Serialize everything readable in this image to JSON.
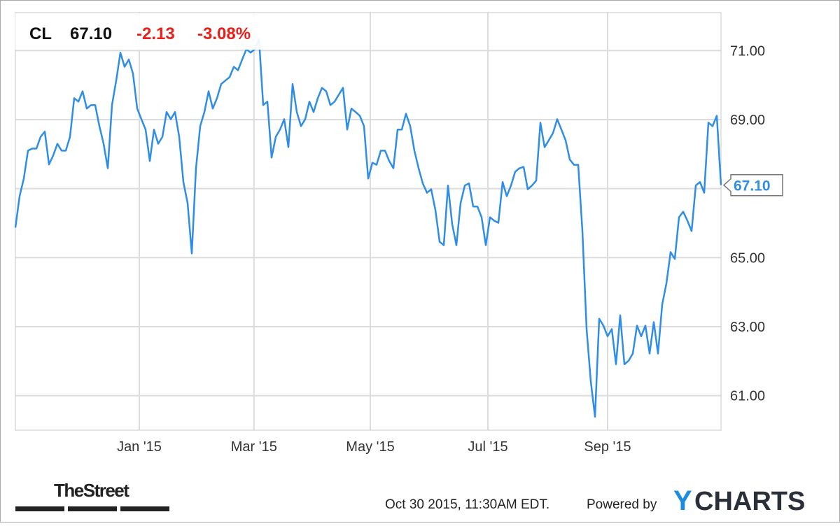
{
  "chart_data": {
    "type": "line",
    "header": {
      "symbol": "CL",
      "price": "67.10",
      "change": "-2.13",
      "change_pct": "-3.08%"
    },
    "footer": {
      "brand": "TheStreet",
      "timestamp": "Oct 30 2015, 11:30AM EDT.",
      "powered": "Powered by",
      "logo_y": "Y",
      "logo_rest": "CHARTS"
    },
    "color": "#2f8ee3",
    "change_color": "#e8201a",
    "grid": true,
    "xlim": [
      0,
      168
    ],
    "xticks": [
      {
        "value": 29.5,
        "label": "Jan '15"
      },
      {
        "value": 56.8,
        "label": "Mar '15"
      },
      {
        "value": 84.5,
        "label": "May '15"
      },
      {
        "value": 112.5,
        "label": "Jul '15"
      },
      {
        "value": 141,
        "label": "Sep '15"
      }
    ],
    "ylim": [
      60,
      72.1
    ],
    "yticks": [
      {
        "value": 61,
        "label": "61.00"
      },
      {
        "value": 63,
        "label": "63.00"
      },
      {
        "value": 65,
        "label": "65.00"
      },
      {
        "value": 67,
        "label": "67.00"
      },
      {
        "value": 69,
        "label": "69.00"
      },
      {
        "value": 71,
        "label": "71.00"
      }
    ],
    "values": [
      65.87,
      66.78,
      67.29,
      68.1,
      68.16,
      68.16,
      68.5,
      68.65,
      67.7,
      67.96,
      68.3,
      68.1,
      68.1,
      68.5,
      69.62,
      69.52,
      69.82,
      69.32,
      69.42,
      69.42,
      68.81,
      68.3,
      67.59,
      69.42,
      70.13,
      70.94,
      70.53,
      70.74,
      70.33,
      69.32,
      69.01,
      68.71,
      67.8,
      68.71,
      68.3,
      68.5,
      69.22,
      69.01,
      69.22,
      68.5,
      67.19,
      66.58,
      65.12,
      67.59,
      68.81,
      69.22,
      69.82,
      69.32,
      69.62,
      70.03,
      70.13,
      70.23,
      70.53,
      70.43,
      70.74,
      71.04,
      70.94,
      71.04,
      71.34,
      69.42,
      69.52,
      67.9,
      68.5,
      68.71,
      69.01,
      68.2,
      70.03,
      69.22,
      68.81,
      69.01,
      69.52,
      69.22,
      69.62,
      69.92,
      69.82,
      69.42,
      69.52,
      69.72,
      69.92,
      68.71,
      69.32,
      69.22,
      69.11,
      68.81,
      67.29,
      67.75,
      67.69,
      68.1,
      68.1,
      67.8,
      67.59,
      68.71,
      68.71,
      69.17,
      68.81,
      68.1,
      67.59,
      67.15,
      66.88,
      66.98,
      66.38,
      65.46,
      65.36,
      67.09,
      65.97,
      65.36,
      66.58,
      67.09,
      67.15,
      66.48,
      66.48,
      66.17,
      65.36,
      66.17,
      66.07,
      66.01,
      67.19,
      66.78,
      67.09,
      67.49,
      67.59,
      67.63,
      66.98,
      67.09,
      67.23,
      68.91,
      68.2,
      68.4,
      68.61,
      69.01,
      68.71,
      68.4,
      67.84,
      67.69,
      67.69,
      65.77,
      62.93,
      61.41,
      60.39,
      63.23,
      63.03,
      62.72,
      62.93,
      61.91,
      63.33,
      61.91,
      62.01,
      62.22,
      63.03,
      62.72,
      63.03,
      62.22,
      63.13,
      62.22,
      63.64,
      64.25,
      65.16,
      64.96,
      66.17,
      66.33,
      66.07,
      65.77,
      67.09,
      67.19,
      66.88,
      68.91,
      68.81,
      69.11,
      67.1
    ]
  }
}
